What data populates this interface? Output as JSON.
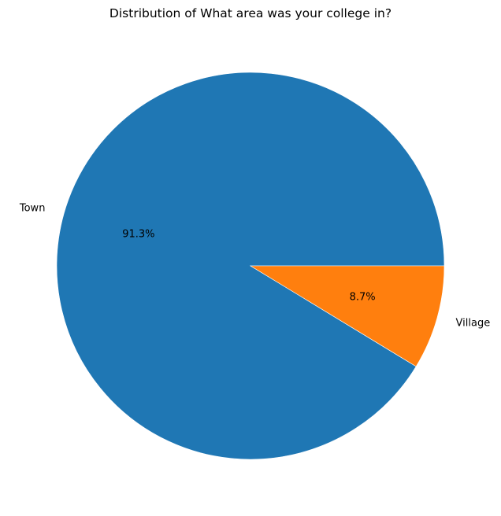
{
  "chart_data": {
    "type": "pie",
    "title": "Distribution of What area was your college in?",
    "slices": [
      {
        "label": "Town",
        "value": 91.3,
        "pct_label": "91.3%",
        "color": "#1f77b4"
      },
      {
        "label": "Village",
        "value": 8.7,
        "pct_label": "8.7%",
        "color": "#ff7f0e"
      }
    ],
    "start_angle_deg": 0,
    "direction": "counterclockwise"
  }
}
